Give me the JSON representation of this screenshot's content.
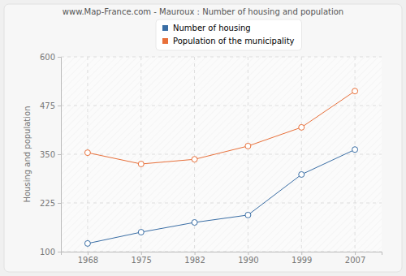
{
  "chart_data": {
    "type": "line",
    "title": "www.Map-France.com - Mauroux : Number of housing and population",
    "y_label": "Housing and population",
    "categories": [
      "1968",
      "1975",
      "1982",
      "1990",
      "1999",
      "2007"
    ],
    "series": [
      {
        "name": "Number of housing",
        "color": "#3a6ea5",
        "values": [
          121,
          150,
          175,
          194,
          298,
          362
        ]
      },
      {
        "name": "Population of the municipality",
        "color": "#e8703a",
        "values": [
          354,
          325,
          337,
          371,
          419,
          512
        ]
      }
    ],
    "ylim": [
      100,
      600
    ],
    "yticks": [
      100,
      225,
      350,
      475,
      600
    ],
    "grid": true,
    "legend": "top",
    "marker": "circle"
  }
}
